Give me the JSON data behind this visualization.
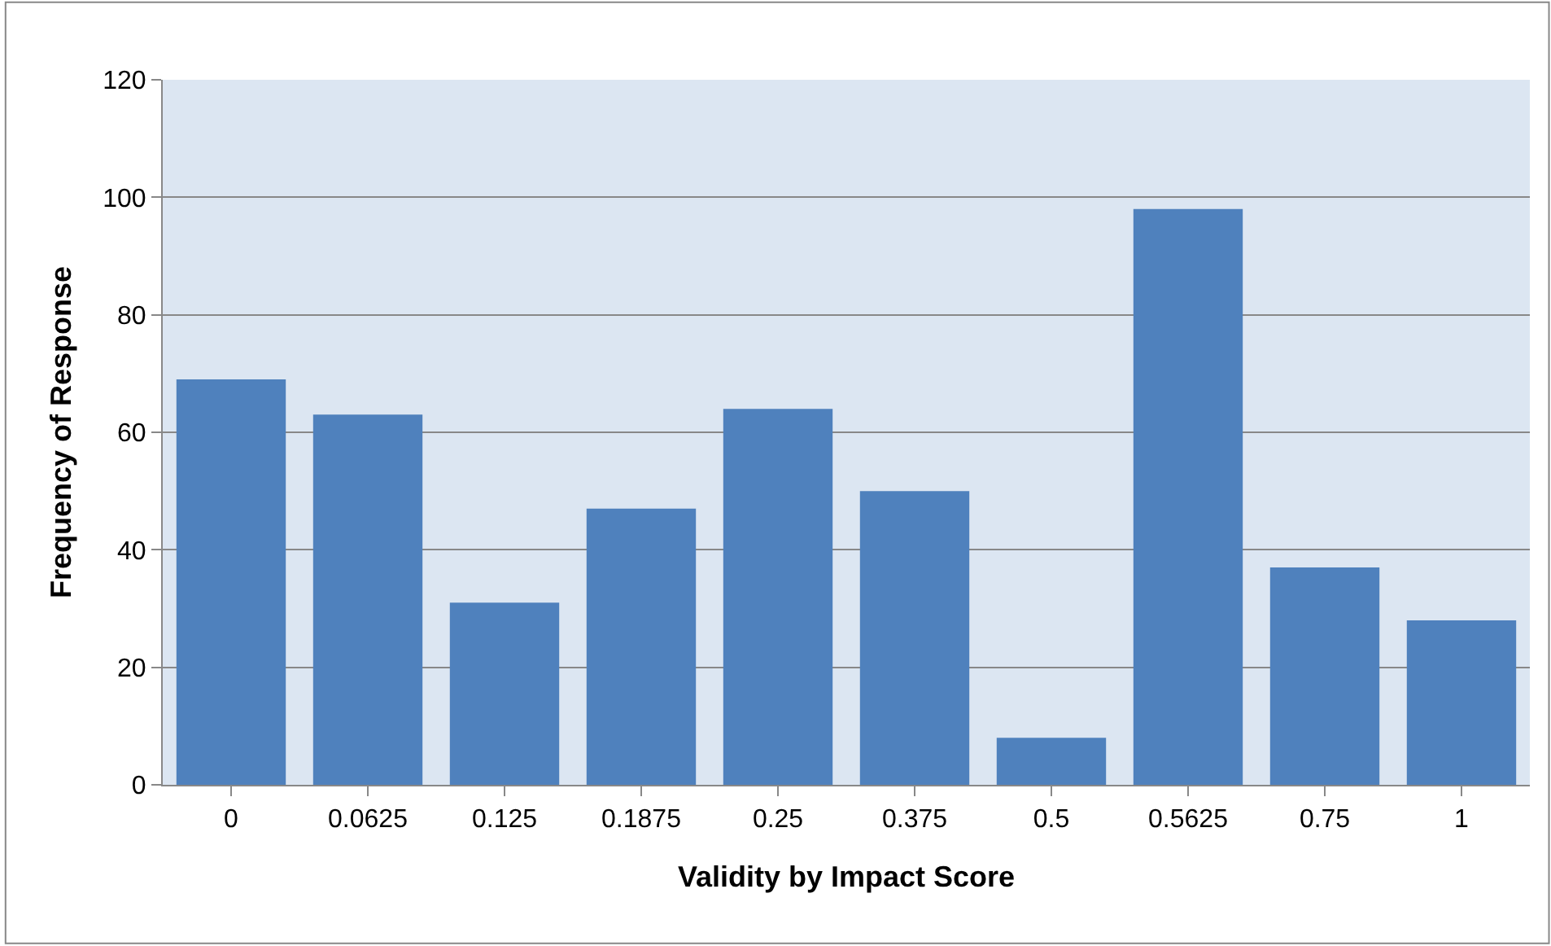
{
  "chart_data": {
    "type": "bar",
    "xlabel": "Validity by Impact Score",
    "ylabel": "Frequency of Response",
    "categories": [
      "0",
      "0.0625",
      "0.125",
      "0.1875",
      "0.25",
      "0.375",
      "0.5",
      "0.5625",
      "0.75",
      "1"
    ],
    "values": [
      69,
      63,
      31,
      47,
      64,
      50,
      8,
      98,
      37,
      28
    ],
    "color": "#4f81bd",
    "ylim": [
      0,
      120
    ],
    "yticks": [
      0,
      20,
      40,
      60,
      80,
      100,
      120
    ],
    "grid": "y"
  }
}
